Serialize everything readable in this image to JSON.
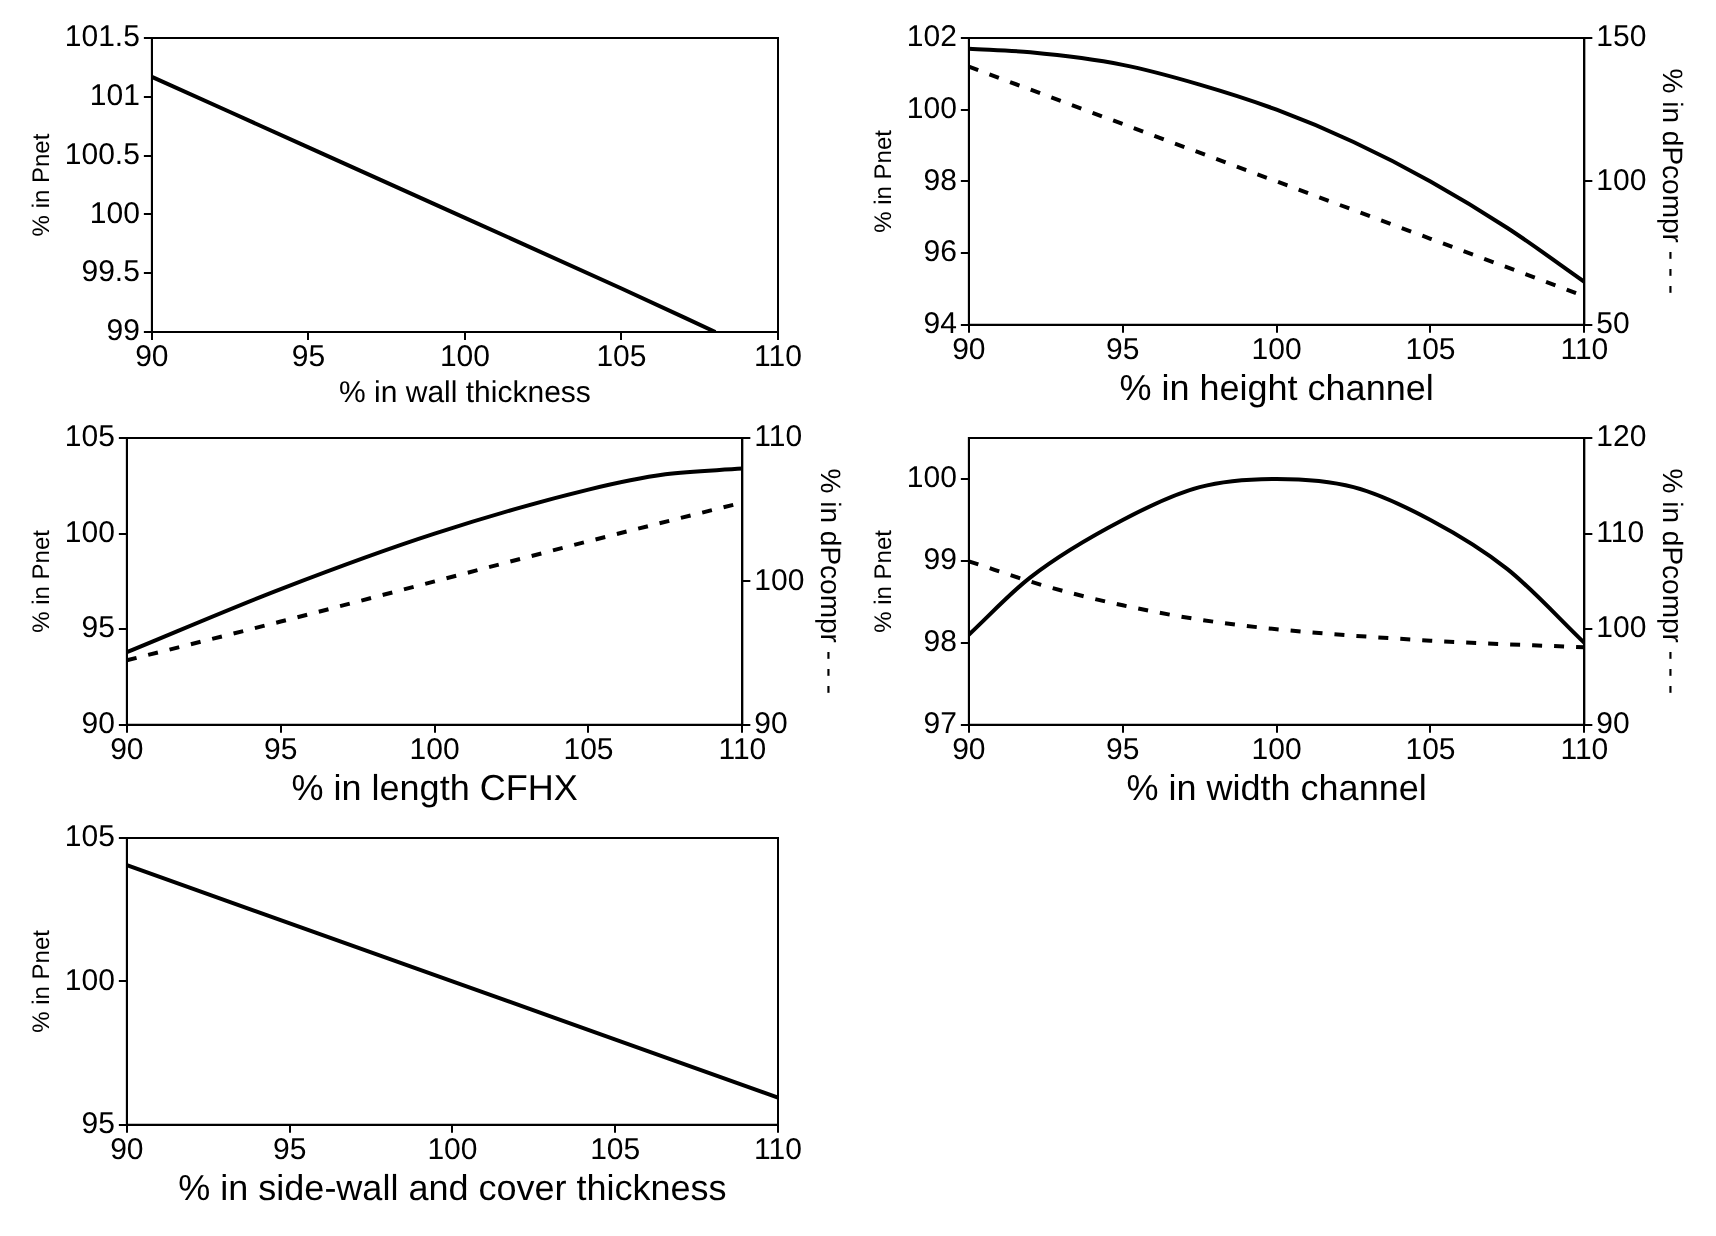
{
  "chart_data": [
    {
      "type": "line",
      "xlabel": "% in wall thickness",
      "ylabel": "% in Pnet",
      "x": [
        90,
        95,
        100,
        105,
        108
      ],
      "series": [
        {
          "color": "#000000",
          "line_style": "solid",
          "values": [
            101.17,
            100.57,
            99.97,
            99.37,
            99.0
          ]
        }
      ],
      "xlim": [
        90,
        110
      ],
      "xticks": [
        90,
        95,
        100,
        105,
        110
      ],
      "ylim": [
        99,
        101.5
      ],
      "yticks": [
        99,
        99.5,
        100,
        100.5,
        101,
        101.5
      ]
    },
    {
      "type": "line",
      "xlabel": "% in height channel",
      "ylabel": "% in Pnet",
      "y2label": "% in dPcompr - - -",
      "x": [
        90,
        92,
        95,
        97.5,
        100,
        102.5,
        105,
        107.5,
        110
      ],
      "series": [
        {
          "color": "#000000",
          "line_style": "solid",
          "values": [
            101.7,
            101.6,
            101.25,
            100.7,
            100.0,
            99.1,
            98.0,
            96.7,
            95.2
          ]
        },
        {
          "color": "#000000",
          "line_style": "dashed",
          "axis": "y2",
          "x": [
            90,
            95,
            100,
            105,
            110
          ],
          "values": [
            140,
            120,
            100,
            80,
            60
          ]
        }
      ],
      "xlim": [
        90,
        110
      ],
      "xticks": [
        90,
        95,
        100,
        105,
        110
      ],
      "ylim": [
        94,
        102
      ],
      "yticks": [
        94,
        96,
        98,
        100,
        102
      ],
      "y2lim": [
        50,
        150
      ],
      "y2ticks": [
        50,
        100,
        150
      ]
    },
    {
      "type": "line",
      "xlabel": "% in length CFHX",
      "ylabel": "% in Pnet",
      "y2label": "% in dPcompr - - -",
      "x": [
        90,
        95,
        100,
        105,
        107.5,
        110
      ],
      "series": [
        {
          "color": "#000000",
          "line_style": "solid",
          "values": [
            93.8,
            97.1,
            100.0,
            102.3,
            103.1,
            103.4
          ]
        },
        {
          "color": "#000000",
          "line_style": "dashed",
          "axis": "y2",
          "x": [
            90,
            95,
            100,
            105,
            110
          ],
          "values": [
            94.5,
            97.2,
            100,
            102.8,
            105.5
          ]
        }
      ],
      "xlim": [
        90,
        110
      ],
      "xticks": [
        90,
        95,
        100,
        105,
        110
      ],
      "ylim": [
        90,
        105
      ],
      "yticks": [
        90,
        95,
        100,
        105
      ],
      "y2lim": [
        90,
        110
      ],
      "y2ticks": [
        90,
        100,
        110
      ]
    },
    {
      "type": "line",
      "xlabel": "% in width channel",
      "ylabel": "% in Pnet",
      "y2label": "% in dPcompr - - -",
      "x": [
        90,
        92,
        95,
        97.5,
        100,
        102.5,
        105,
        107.5,
        110
      ],
      "series": [
        {
          "color": "#000000",
          "line_style": "solid",
          "values": [
            98.1,
            98.8,
            99.5,
            99.9,
            100.0,
            99.9,
            99.5,
            98.9,
            98.0
          ]
        },
        {
          "color": "#000000",
          "line_style": "dashed",
          "axis": "y2",
          "x": [
            90,
            92.5,
            95,
            97.5,
            100,
            105,
            110
          ],
          "values": [
            107.1,
            104.5,
            102.5,
            101,
            100,
            98.8,
            98.1
          ]
        }
      ],
      "xlim": [
        90,
        110
      ],
      "xticks": [
        90,
        95,
        100,
        105,
        110
      ],
      "ylim": [
        97,
        100.5
      ],
      "yticks": [
        97,
        98,
        99,
        100
      ],
      "y2lim": [
        90,
        120
      ],
      "y2ticks": [
        90,
        100,
        110,
        120
      ]
    },
    {
      "type": "line",
      "xlabel": "% in side-wall and cover thickness",
      "ylabel": "% in Pnet",
      "x": [
        90,
        100,
        110
      ],
      "series": [
        {
          "color": "#000000",
          "line_style": "solid",
          "values": [
            104.05,
            100,
            95.95
          ]
        }
      ],
      "xlim": [
        90,
        110
      ],
      "xticks": [
        90,
        95,
        100,
        105,
        110
      ],
      "ylim": [
        95,
        105
      ],
      "yticks": [
        95,
        100,
        105
      ]
    }
  ]
}
